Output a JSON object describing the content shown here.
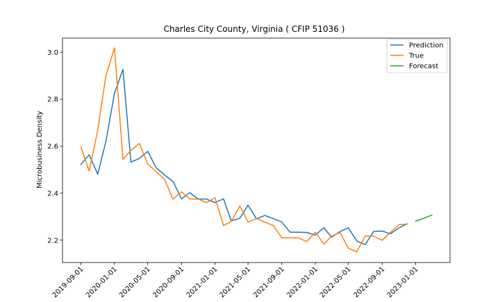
{
  "chart_data": {
    "type": "line",
    "title": "Charles City County, Virginia ( CFIP 51036 )",
    "xlabel": "",
    "ylabel": "Microbusiness Density",
    "x_ticks": [
      "2019-09-01",
      "2020-01-01",
      "2020-05-01",
      "2020-09-01",
      "2021-01-01",
      "2021-05-01",
      "2021-09-01",
      "2022-01-01",
      "2022-05-01",
      "2022-09-01",
      "2023-01-01"
    ],
    "y_ticks": [
      "2.2",
      "2.4",
      "2.6",
      "2.8",
      "3.0"
    ],
    "xlim": [
      "2019-06-26",
      "2023-05-06"
    ],
    "ylim": [
      2.105,
      3.06
    ],
    "grid": false,
    "legend_position": "top-right",
    "series": [
      {
        "name": "Prediction",
        "color": "#1f77b4",
        "points": [
          [
            "2019-09-01",
            2.522
          ],
          [
            "2019-10-01",
            2.564
          ],
          [
            "2019-11-01",
            2.481
          ],
          [
            "2019-12-01",
            2.62
          ],
          [
            "2020-01-01",
            2.825
          ],
          [
            "2020-02-01",
            2.927
          ],
          [
            "2020-03-01",
            2.532
          ],
          [
            "2020-04-01",
            2.548
          ],
          [
            "2020-05-01",
            2.578
          ],
          [
            "2020-06-01",
            2.508
          ],
          [
            "2020-07-01",
            2.478
          ],
          [
            "2020-08-01",
            2.45
          ],
          [
            "2020-09-01",
            2.376
          ],
          [
            "2020-10-01",
            2.402
          ],
          [
            "2020-11-01",
            2.375
          ],
          [
            "2020-12-01",
            2.375
          ],
          [
            "2021-01-01",
            2.36
          ],
          [
            "2021-02-01",
            2.376
          ],
          [
            "2021-03-01",
            2.282
          ],
          [
            "2021-04-01",
            2.293
          ],
          [
            "2021-05-01",
            2.349
          ],
          [
            "2021-06-01",
            2.291
          ],
          [
            "2021-07-01",
            2.305
          ],
          [
            "2021-08-01",
            2.292
          ],
          [
            "2021-09-01",
            2.277
          ],
          [
            "2021-10-01",
            2.234
          ],
          [
            "2021-11-01",
            2.234
          ],
          [
            "2021-12-01",
            2.233
          ],
          [
            "2022-01-01",
            2.222
          ],
          [
            "2022-02-01",
            2.253
          ],
          [
            "2022-03-01",
            2.213
          ],
          [
            "2022-04-01",
            2.237
          ],
          [
            "2022-05-01",
            2.252
          ],
          [
            "2022-06-01",
            2.197
          ],
          [
            "2022-07-01",
            2.181
          ],
          [
            "2022-08-01",
            2.237
          ],
          [
            "2022-09-01",
            2.239
          ],
          [
            "2022-10-01",
            2.227
          ],
          [
            "2022-11-01",
            2.252
          ],
          [
            "2022-12-01",
            2.27
          ]
        ]
      },
      {
        "name": "True",
        "color": "#ff7f0e",
        "points": [
          [
            "2019-09-01",
            2.597
          ],
          [
            "2019-10-01",
            2.494
          ],
          [
            "2019-11-01",
            2.668
          ],
          [
            "2019-12-01",
            2.9
          ],
          [
            "2020-01-01",
            3.018
          ],
          [
            "2020-02-01",
            2.544
          ],
          [
            "2020-03-01",
            2.582
          ],
          [
            "2020-04-01",
            2.612
          ],
          [
            "2020-05-01",
            2.524
          ],
          [
            "2020-06-01",
            2.492
          ],
          [
            "2020-07-01",
            2.46
          ],
          [
            "2020-08-01",
            2.375
          ],
          [
            "2020-09-01",
            2.406
          ],
          [
            "2020-10-01",
            2.375
          ],
          [
            "2020-11-01",
            2.375
          ],
          [
            "2020-12-01",
            2.36
          ],
          [
            "2021-01-01",
            2.381
          ],
          [
            "2021-02-01",
            2.262
          ],
          [
            "2021-03-01",
            2.28
          ],
          [
            "2021-04-01",
            2.346
          ],
          [
            "2021-05-01",
            2.278
          ],
          [
            "2021-06-01",
            2.292
          ],
          [
            "2021-07-01",
            2.277
          ],
          [
            "2021-08-01",
            2.262
          ],
          [
            "2021-09-01",
            2.21
          ],
          [
            "2021-10-01",
            2.21
          ],
          [
            "2021-11-01",
            2.21
          ],
          [
            "2021-12-01",
            2.194
          ],
          [
            "2022-01-01",
            2.234
          ],
          [
            "2022-02-01",
            2.183
          ],
          [
            "2022-03-01",
            2.217
          ],
          [
            "2022-04-01",
            2.233
          ],
          [
            "2022-05-01",
            2.166
          ],
          [
            "2022-06-01",
            2.15
          ],
          [
            "2022-07-01",
            2.218
          ],
          [
            "2022-08-01",
            2.217
          ],
          [
            "2022-09-01",
            2.2
          ],
          [
            "2022-10-01",
            2.233
          ],
          [
            "2022-11-01",
            2.266
          ],
          [
            "2022-12-01",
            2.268
          ]
        ]
      },
      {
        "name": "Forecast",
        "color": "#2ca02c",
        "points": [
          [
            "2023-01-01",
            2.281
          ],
          [
            "2023-02-01",
            2.294
          ],
          [
            "2023-03-01",
            2.307
          ]
        ]
      }
    ]
  }
}
